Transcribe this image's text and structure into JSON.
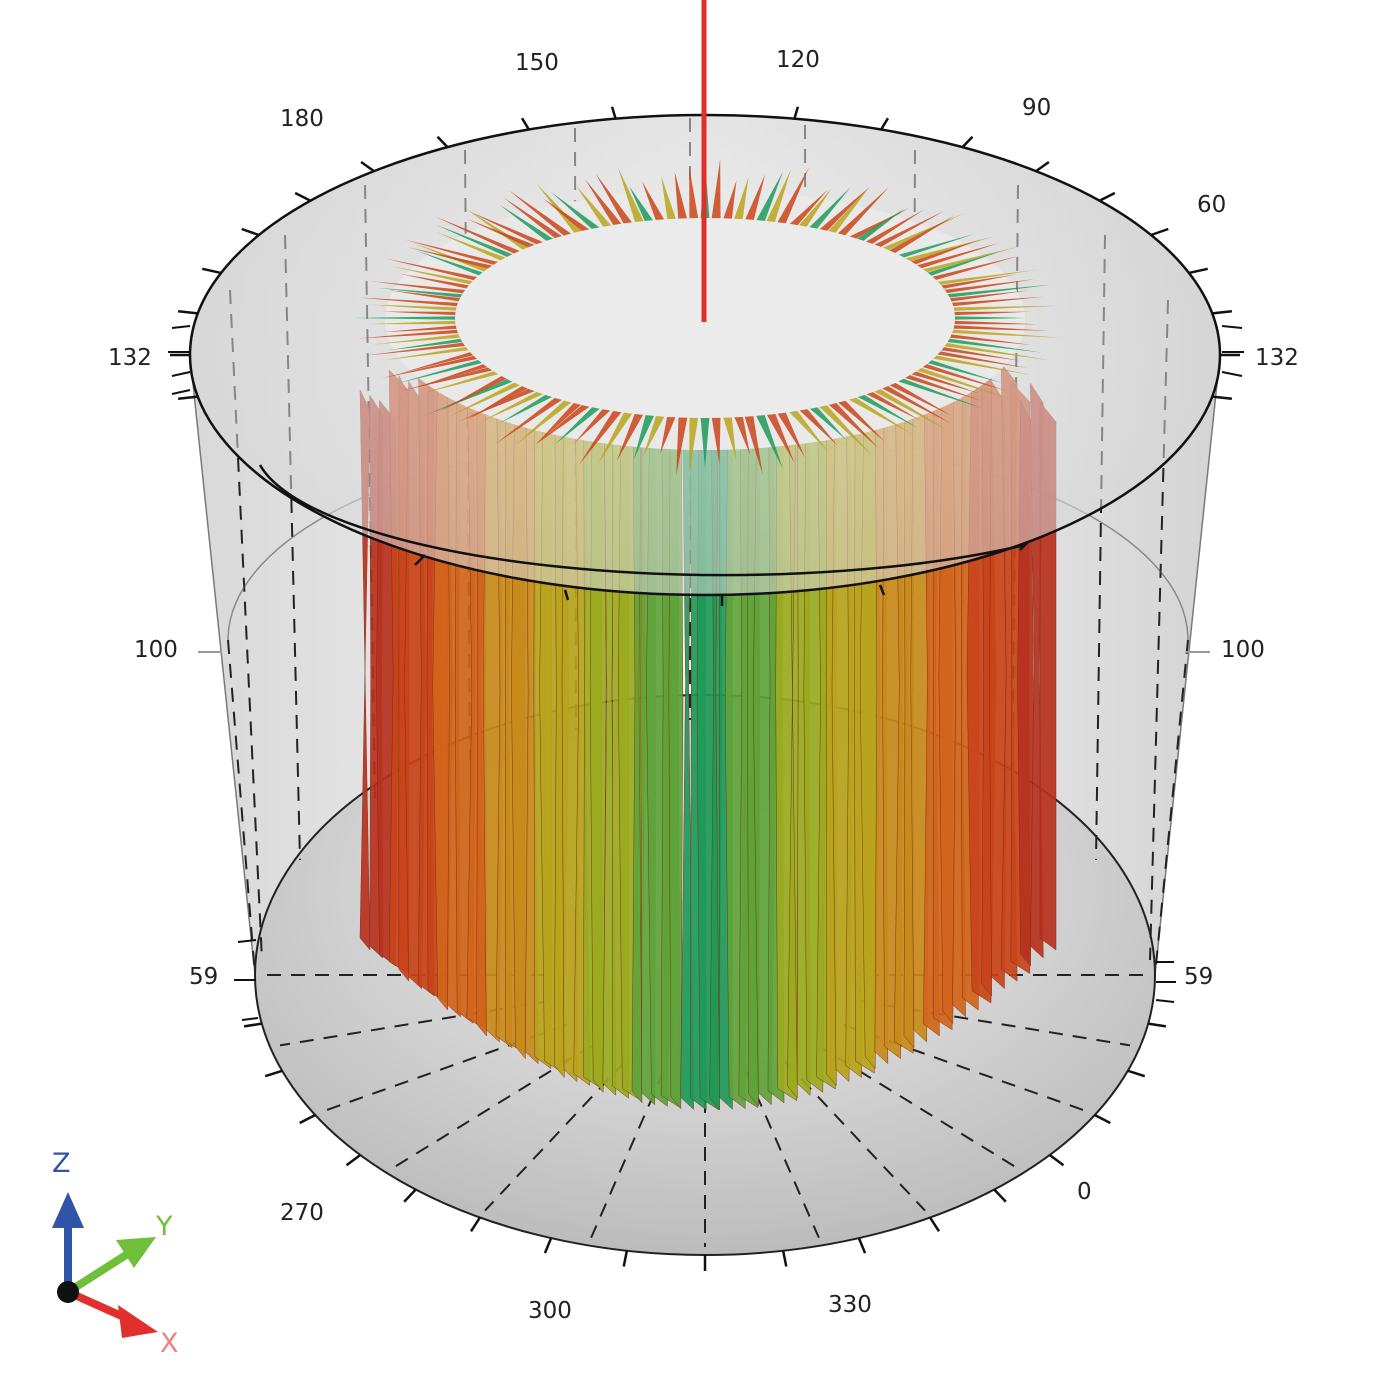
{
  "view": {
    "angle_labels": {
      "a150": "150",
      "a120": "120",
      "a180": "180",
      "a90": "90",
      "a60": "60",
      "a270": "270",
      "a0": "0",
      "a300": "300",
      "a330": "330"
    },
    "height_labels": {
      "left_132": "132",
      "right_132": "132",
      "left_100": "100",
      "right_100": "100",
      "left_59": "59",
      "right_59": "59"
    },
    "axes": {
      "z": "Z",
      "y": "Y",
      "x": "X"
    },
    "colors": {
      "z_axis": "#2f54a8",
      "y_axis": "#6fbf3a",
      "x_axis": "#e0302b",
      "probe_line": "#e0302b",
      "surface_low": "#c0392b",
      "surface_mid": "#b8b81a",
      "surface_high": "#1a9a5a"
    }
  }
}
